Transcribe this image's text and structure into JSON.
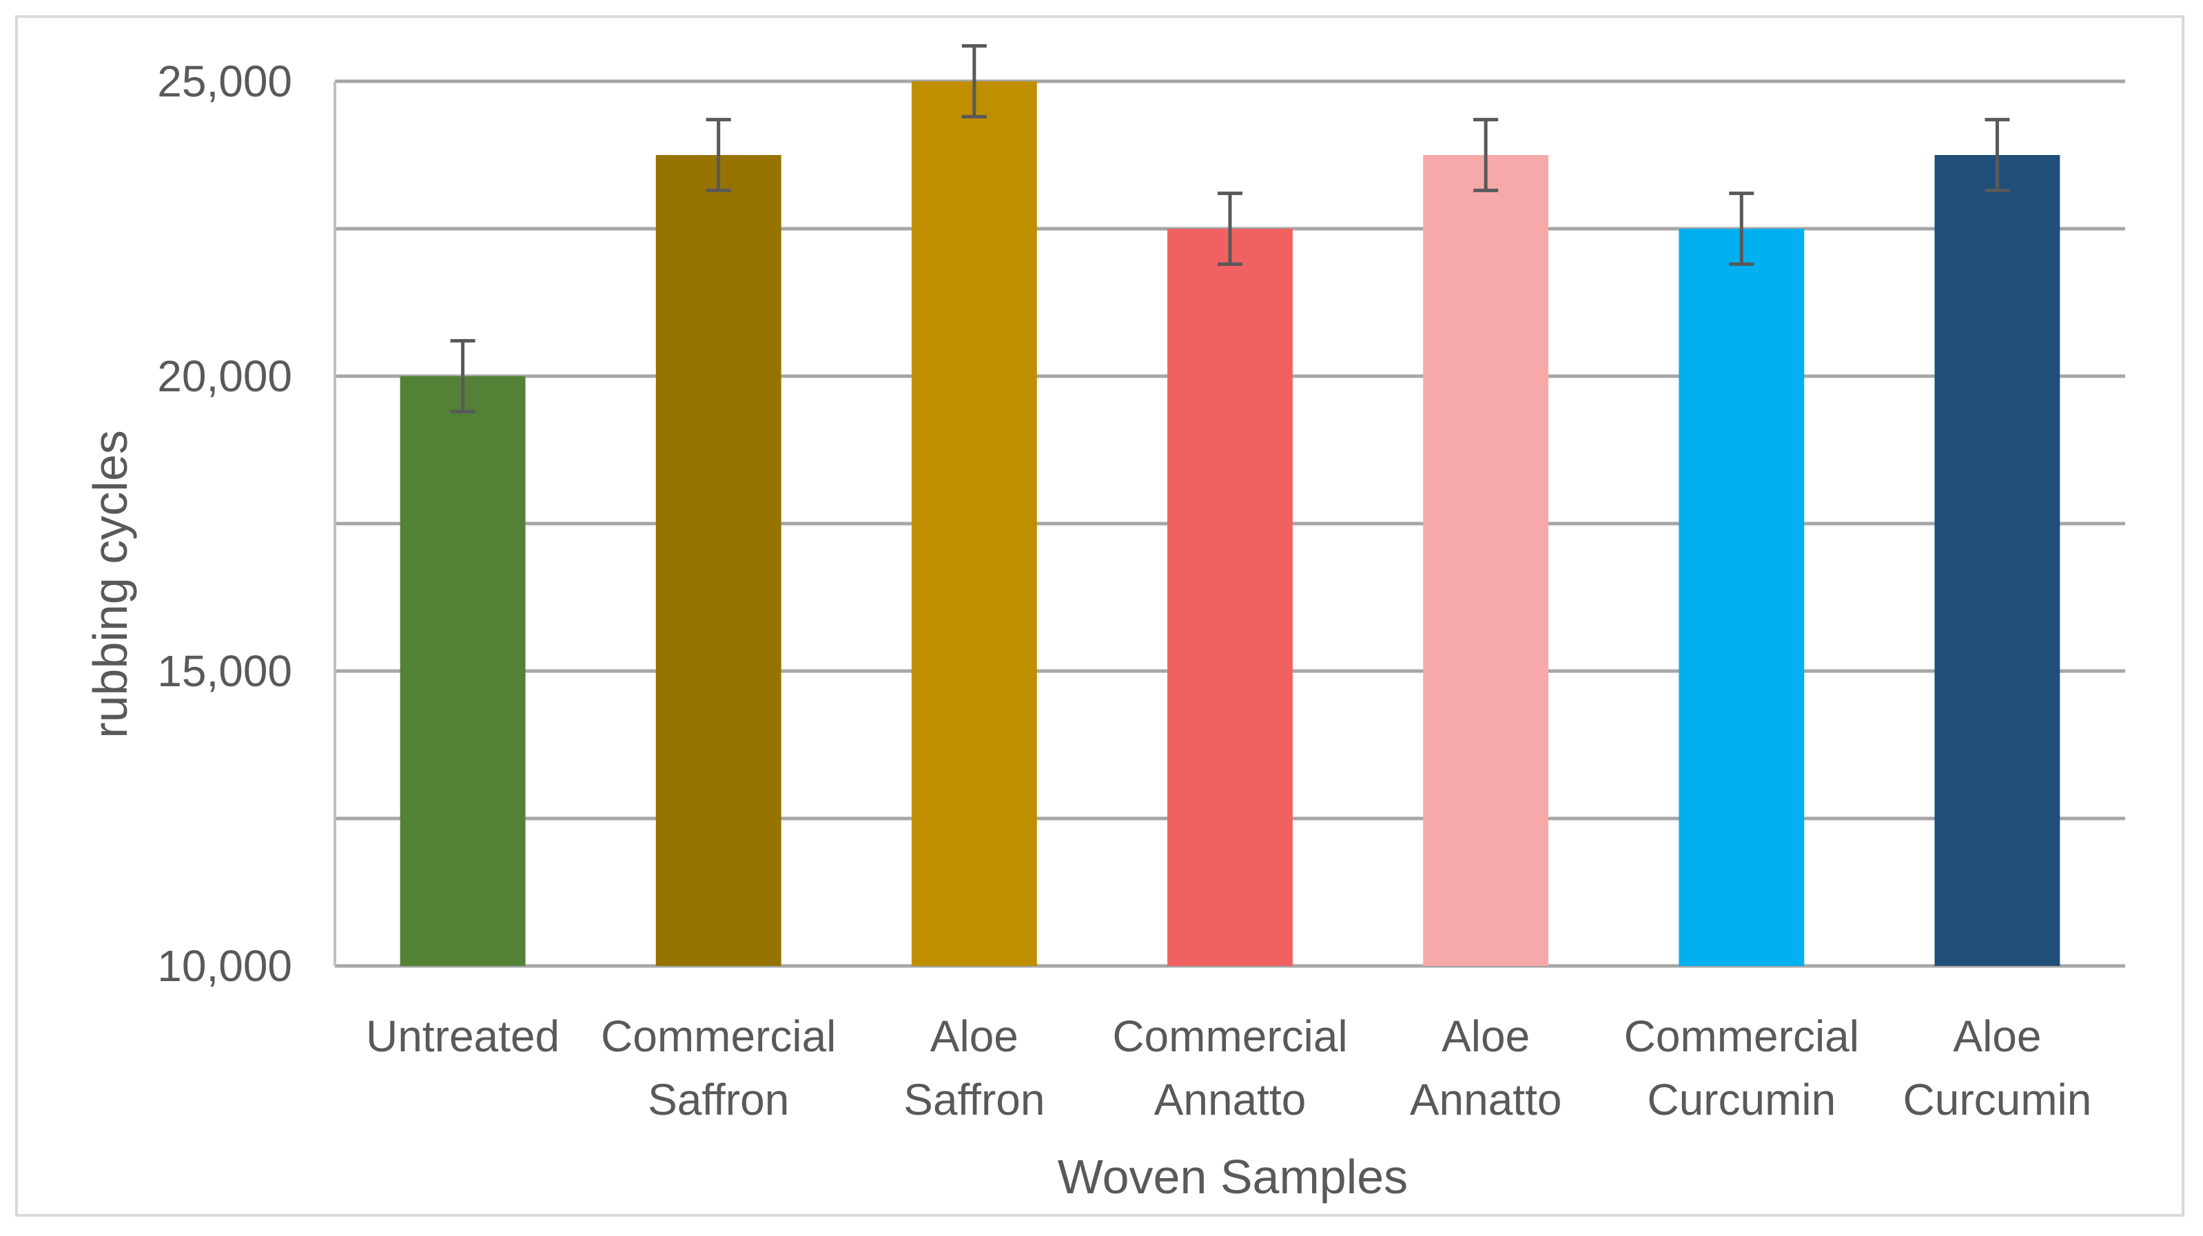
{
  "chart_data": {
    "type": "bar",
    "title": "",
    "xlabel": "Woven Samples",
    "ylabel": "rubbing cycles",
    "ylim": [
      10000,
      25000
    ],
    "ytick_step": 2500,
    "ytick_labels": [
      {
        "value": 10000,
        "label": "10,000"
      },
      {
        "value": 15000,
        "label": "15,000"
      },
      {
        "value": 20000,
        "label": "20,000"
      },
      {
        "value": 25000,
        "label": "25,000"
      }
    ],
    "grid": true,
    "legend": "none",
    "categories": [
      [
        "Untreated"
      ],
      [
        "Commercial",
        "Saffron"
      ],
      [
        "Aloe",
        "Saffron"
      ],
      [
        "Commercial",
        "Annatto"
      ],
      [
        "Aloe",
        "Annatto"
      ],
      [
        "Commercial",
        "Curcumin"
      ],
      [
        "Aloe",
        "Curcumin"
      ]
    ],
    "values": [
      20000,
      23750,
      25000,
      22500,
      23750,
      22500,
      23750
    ],
    "error": [
      600,
      600,
      600,
      600,
      600,
      600,
      600
    ],
    "colors": [
      "#538135",
      "#967300",
      "#bf8f00",
      "#f26161",
      "#f7a9a9",
      "#00b0f0",
      "#1f4e79"
    ]
  }
}
